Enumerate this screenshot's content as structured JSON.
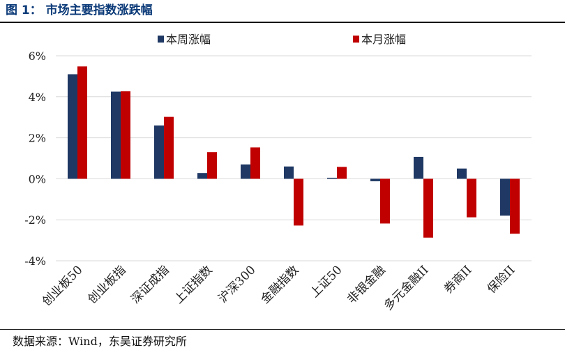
{
  "header": {
    "title": "图 1： 市场主要指数涨跌幅"
  },
  "footer": {
    "source": "数据来源：Wind，东吴证券研究所"
  },
  "colors": {
    "week": "#1f3864",
    "month": "#c00000",
    "grid": "#d9d9d9"
  },
  "chart_data": {
    "type": "bar",
    "title": "",
    "xlabel": "",
    "ylabel": "",
    "ylim": [
      -4,
      6
    ],
    "yticks": [
      6,
      4,
      2,
      0,
      -2,
      -4
    ],
    "ytick_labels": [
      "6%",
      "4%",
      "2%",
      "0%",
      "-2%",
      "-4%"
    ],
    "legend_position": "top-center",
    "categories": [
      "创业板50",
      "创业板指",
      "深证成指",
      "上证指数",
      "沪深300",
      "金融指数",
      "上证50",
      "非银金融",
      "多元金融II",
      "券商II",
      "保险II"
    ],
    "series": [
      {
        "name": "本周涨幅",
        "values": [
          5.1,
          4.25,
          2.6,
          0.28,
          0.7,
          0.6,
          0.05,
          -0.12,
          1.07,
          0.5,
          -1.8
        ]
      },
      {
        "name": "本月涨幅",
        "values": [
          5.48,
          4.27,
          3.02,
          1.3,
          1.53,
          -2.28,
          0.58,
          -2.18,
          -2.87,
          -1.88,
          -2.68
        ]
      }
    ]
  }
}
